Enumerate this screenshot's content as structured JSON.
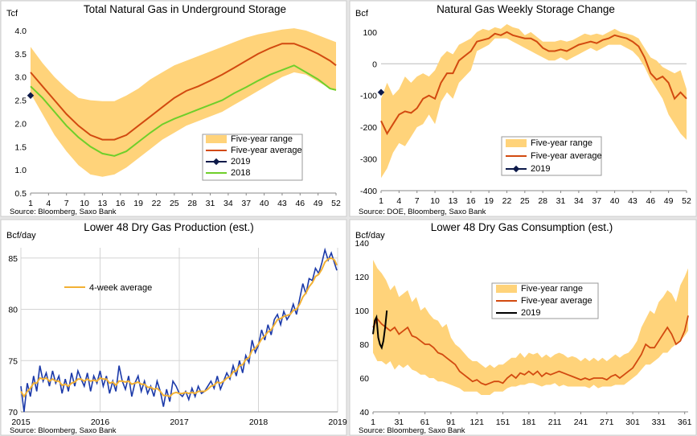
{
  "chart_data": [
    {
      "type": "area",
      "title": "Total Natural Gas in Underground  Storage",
      "ylabel": "Tcf",
      "xlabel": "",
      "source": "Source: Bloomberg, Saxo Bank",
      "xlim": [
        1,
        52
      ],
      "ylim": [
        0.5,
        4.0
      ],
      "x_ticks": [
        "1",
        "4",
        "7",
        "10",
        "13",
        "16",
        "19",
        "22",
        "25",
        "28",
        "31",
        "34",
        "37",
        "40",
        "43",
        "46",
        "49",
        "52"
      ],
      "y_ticks": [
        "0.5",
        "1.0",
        "1.5",
        "2.0",
        "2.5",
        "3.0",
        "3.5",
        "4.0"
      ],
      "legend": [
        "Five-year range",
        "Five-year average",
        "2019",
        "2018"
      ],
      "colors": {
        "range": "#ffd37a",
        "avg": "#d24a10",
        "y2019": "#0d1a4a",
        "y2018": "#6fcf2a"
      },
      "x_weeks": [
        1,
        3,
        5,
        7,
        9,
        11,
        13,
        15,
        17,
        19,
        21,
        23,
        25,
        27,
        29,
        31,
        33,
        35,
        37,
        39,
        41,
        43,
        45,
        47,
        49,
        51,
        52
      ],
      "range_high": [
        3.65,
        3.3,
        3.0,
        2.75,
        2.55,
        2.5,
        2.48,
        2.48,
        2.6,
        2.75,
        2.95,
        3.1,
        3.25,
        3.35,
        3.45,
        3.55,
        3.65,
        3.75,
        3.85,
        3.92,
        3.97,
        4.02,
        4.05,
        4.0,
        3.9,
        3.8,
        3.75
      ],
      "range_low": [
        2.65,
        2.2,
        1.75,
        1.4,
        1.1,
        0.9,
        0.85,
        0.9,
        1.05,
        1.25,
        1.45,
        1.65,
        1.8,
        1.95,
        2.05,
        2.15,
        2.25,
        2.4,
        2.55,
        2.7,
        2.85,
        3.0,
        3.1,
        3.05,
        2.9,
        2.75,
        2.7
      ],
      "average": [
        3.1,
        2.8,
        2.5,
        2.2,
        1.95,
        1.75,
        1.65,
        1.65,
        1.75,
        1.95,
        2.15,
        2.35,
        2.55,
        2.7,
        2.8,
        2.92,
        3.05,
        3.2,
        3.35,
        3.5,
        3.62,
        3.72,
        3.72,
        3.62,
        3.5,
        3.35,
        3.25
      ],
      "series_2018": [
        2.8,
        2.55,
        2.25,
        1.95,
        1.7,
        1.5,
        1.35,
        1.3,
        1.4,
        1.6,
        1.8,
        1.98,
        2.1,
        2.2,
        2.3,
        2.4,
        2.5,
        2.65,
        2.78,
        2.92,
        3.05,
        3.15,
        3.25,
        3.1,
        2.95,
        2.75,
        2.72
      ],
      "series_2019": [
        {
          "x": 1,
          "y": 2.6
        }
      ]
    },
    {
      "type": "area",
      "title": "Natural Gas Weekly Storage Change",
      "ylabel": "Bcf",
      "xlabel": "",
      "source": "Source: DOE, Bloomberg,  Saxo Bank",
      "xlim": [
        1,
        52
      ],
      "ylim": [
        -400,
        125
      ],
      "x_ticks": [
        "1",
        "4",
        "7",
        "10",
        "13",
        "16",
        "19",
        "22",
        "25",
        "28",
        "31",
        "34",
        "37",
        "40",
        "43",
        "46",
        "49",
        "52"
      ],
      "y_ticks": [
        "100",
        "0",
        "-100",
        "-200",
        "-300",
        "-400"
      ],
      "legend": [
        "Five-year range",
        "Five-year average",
        "2019"
      ],
      "colors": {
        "range": "#ffd37a",
        "avg": "#d24a10",
        "y2019": "#0d1a4a"
      },
      "x_weeks": [
        1,
        2,
        3,
        4,
        5,
        6,
        7,
        8,
        9,
        10,
        11,
        12,
        13,
        14,
        15,
        16,
        17,
        18,
        19,
        20,
        21,
        22,
        23,
        24,
        25,
        26,
        27,
        28,
        29,
        30,
        31,
        32,
        33,
        34,
        35,
        36,
        37,
        38,
        39,
        40,
        41,
        42,
        43,
        44,
        45,
        46,
        47,
        48,
        49,
        50,
        51,
        52
      ],
      "range_high": [
        -110,
        -60,
        -100,
        -80,
        -40,
        -60,
        -40,
        -30,
        -40,
        -20,
        20,
        40,
        30,
        60,
        70,
        80,
        100,
        110,
        105,
        115,
        110,
        125,
        115,
        110,
        90,
        100,
        85,
        70,
        70,
        70,
        75,
        70,
        75,
        85,
        95,
        90,
        95,
        90,
        100,
        110,
        100,
        95,
        90,
        80,
        50,
        20,
        10,
        -10,
        -20,
        -30,
        -20,
        -80
      ],
      "range_low": [
        -360,
        -330,
        -280,
        -250,
        -260,
        -230,
        -200,
        -190,
        -160,
        -190,
        -120,
        -90,
        -110,
        -60,
        -40,
        -20,
        40,
        50,
        60,
        80,
        80,
        80,
        70,
        60,
        50,
        40,
        30,
        20,
        10,
        10,
        20,
        10,
        20,
        30,
        40,
        50,
        40,
        50,
        60,
        60,
        60,
        50,
        40,
        20,
        -10,
        -50,
        -80,
        -110,
        -160,
        -190,
        -220,
        -240
      ],
      "average": [
        -180,
        -220,
        -190,
        -160,
        -150,
        -155,
        -140,
        -110,
        -100,
        -110,
        -60,
        -30,
        -30,
        10,
        25,
        40,
        70,
        75,
        80,
        95,
        90,
        100,
        90,
        85,
        80,
        80,
        70,
        50,
        40,
        40,
        45,
        40,
        50,
        60,
        65,
        70,
        65,
        75,
        80,
        90,
        85,
        80,
        70,
        55,
        20,
        -30,
        -50,
        -40,
        -60,
        -110,
        -90,
        -110
      ],
      "series_2019": [
        {
          "x": 1,
          "y": -90
        }
      ]
    },
    {
      "type": "line",
      "title": "Lower 48 Dry Gas Production (est.)",
      "ylabel": "Bcf/day",
      "xlabel": "",
      "source": "Source: Bloomberg, Saxo Bank",
      "xlim": [
        2015,
        2019
      ],
      "ylim": [
        70,
        86
      ],
      "x_ticks": [
        "2015",
        "2016",
        "2017",
        "2018",
        "2019"
      ],
      "y_ticks": [
        "70",
        "75",
        "80",
        "85"
      ],
      "legend": [
        "4-week average"
      ],
      "colors": {
        "daily": "#1c3aa9",
        "avg": "#f2b134"
      },
      "x_years": [
        2015.0,
        2015.04,
        2015.08,
        2015.12,
        2015.16,
        2015.2,
        2015.24,
        2015.28,
        2015.32,
        2015.36,
        2015.4,
        2015.44,
        2015.48,
        2015.52,
        2015.56,
        2015.6,
        2015.64,
        2015.68,
        2015.72,
        2015.76,
        2015.8,
        2015.84,
        2015.88,
        2015.92,
        2015.96,
        2016.0,
        2016.04,
        2016.08,
        2016.12,
        2016.16,
        2016.2,
        2016.24,
        2016.28,
        2016.32,
        2016.36,
        2016.4,
        2016.44,
        2016.48,
        2016.52,
        2016.56,
        2016.6,
        2016.64,
        2016.68,
        2016.72,
        2016.76,
        2016.8,
        2016.84,
        2016.88,
        2016.92,
        2016.96,
        2017.0,
        2017.04,
        2017.08,
        2017.12,
        2017.16,
        2017.2,
        2017.24,
        2017.28,
        2017.32,
        2017.36,
        2017.4,
        2017.44,
        2017.48,
        2017.52,
        2017.56,
        2017.6,
        2017.64,
        2017.68,
        2017.72,
        2017.76,
        2017.8,
        2017.84,
        2017.88,
        2017.92,
        2017.96,
        2018.0,
        2018.04,
        2018.08,
        2018.12,
        2018.16,
        2018.2,
        2018.24,
        2018.28,
        2018.32,
        2018.36,
        2018.4,
        2018.44,
        2018.48,
        2018.52,
        2018.56,
        2018.6,
        2018.64,
        2018.68,
        2018.72,
        2018.76,
        2018.8,
        2018.84,
        2018.88,
        2018.92,
        2018.96,
        2018.99
      ],
      "daily": [
        72.5,
        70.0,
        72.8,
        71.5,
        73.5,
        72.0,
        74.5,
        73.0,
        73.8,
        72.5,
        74.0,
        72.8,
        73.5,
        71.8,
        73.2,
        72.0,
        73.8,
        72.5,
        74.0,
        73.2,
        72.5,
        73.8,
        72.0,
        73.5,
        72.8,
        74.0,
        72.5,
        73.5,
        71.8,
        73.0,
        72.0,
        74.5,
        73.0,
        72.2,
        73.5,
        71.5,
        72.8,
        73.5,
        72.0,
        73.0,
        71.8,
        72.5,
        71.5,
        73.0,
        72.0,
        70.5,
        72.2,
        71.0,
        73.0,
        72.5,
        71.8,
        71.5,
        72.0,
        71.2,
        72.3,
        71.5,
        72.5,
        71.8,
        72.0,
        72.5,
        73.0,
        72.3,
        73.5,
        72.2,
        73.0,
        73.8,
        73.2,
        74.5,
        73.5,
        75.0,
        73.8,
        75.5,
        74.8,
        77.0,
        75.8,
        76.5,
        78.0,
        77.0,
        78.5,
        77.5,
        79.0,
        79.5,
        78.5,
        79.8,
        79.0,
        79.5,
        80.5,
        79.5,
        81.0,
        82.5,
        81.5,
        83.0,
        82.8,
        84.0,
        83.5,
        84.5,
        85.8,
        84.8,
        85.5,
        84.5,
        83.8
      ],
      "average": [
        72.0,
        71.5,
        72.0,
        72.3,
        72.8,
        72.8,
        73.3,
        73.2,
        73.3,
        73.0,
        73.2,
        73.0,
        73.0,
        72.6,
        72.7,
        72.5,
        72.8,
        72.9,
        73.2,
        73.2,
        73.0,
        73.2,
        73.0,
        73.1,
        73.0,
        73.3,
        73.2,
        73.2,
        72.8,
        72.9,
        72.6,
        73.0,
        73.0,
        72.9,
        73.0,
        72.7,
        72.8,
        72.9,
        72.7,
        72.7,
        72.4,
        72.4,
        72.2,
        72.3,
        72.0,
        71.6,
        71.6,
        71.5,
        71.8,
        71.9,
        71.8,
        71.8,
        71.9,
        71.8,
        71.9,
        71.8,
        72.0,
        72.0,
        72.0,
        72.2,
        72.5,
        72.6,
        72.9,
        72.8,
        73.0,
        73.3,
        73.4,
        73.9,
        74.0,
        74.5,
        74.6,
        75.1,
        75.3,
        76.0,
        76.2,
        76.6,
        77.1,
        77.4,
        77.8,
        78.0,
        78.5,
        79.0,
        79.1,
        79.3,
        79.4,
        79.5,
        79.9,
        80.0,
        80.5,
        81.2,
        81.6,
        82.2,
        82.6,
        83.2,
        83.4,
        83.9,
        84.6,
        84.9,
        85.0,
        84.8,
        84.3
      ]
    },
    {
      "type": "area",
      "title": "Lower 48 Dry Gas Consumption (est.)",
      "ylabel": "Bcf/day",
      "xlabel": "",
      "source": "Source: Bloomberg, Saxo Bank",
      "xlim": [
        1,
        365
      ],
      "ylim": [
        40,
        140
      ],
      "x_ticks": [
        "1",
        "31",
        "61",
        "91",
        "121",
        "151",
        "181",
        "211",
        "241",
        "271",
        "301",
        "331",
        "361"
      ],
      "y_ticks": [
        "40",
        "60",
        "80",
        "100",
        "120",
        "140"
      ],
      "legend": [
        "Five-year range",
        "Five-year average",
        "2019"
      ],
      "colors": {
        "range": "#ffd37a",
        "avg": "#d24a10",
        "y2019": "#000000"
      },
      "x_days": [
        1,
        6,
        11,
        16,
        21,
        26,
        31,
        36,
        41,
        46,
        51,
        56,
        61,
        66,
        71,
        76,
        81,
        86,
        91,
        96,
        101,
        106,
        111,
        116,
        121,
        126,
        131,
        136,
        141,
        146,
        151,
        156,
        161,
        166,
        171,
        176,
        181,
        186,
        191,
        196,
        201,
        206,
        211,
        216,
        221,
        226,
        231,
        236,
        241,
        246,
        251,
        256,
        261,
        266,
        271,
        276,
        281,
        286,
        291,
        296,
        301,
        306,
        311,
        316,
        321,
        326,
        331,
        336,
        341,
        346,
        351,
        356,
        361,
        365
      ],
      "range_high": [
        130,
        125,
        122,
        118,
        112,
        115,
        108,
        110,
        112,
        105,
        108,
        100,
        102,
        98,
        95,
        94,
        90,
        92,
        84,
        80,
        78,
        75,
        72,
        70,
        70,
        68,
        66,
        68,
        66,
        68,
        68,
        70,
        72,
        72,
        75,
        72,
        75,
        74,
        75,
        72,
        74,
        72,
        74,
        75,
        74,
        72,
        73,
        72,
        70,
        72,
        70,
        72,
        70,
        72,
        70,
        72,
        74,
        72,
        74,
        75,
        78,
        82,
        90,
        95,
        100,
        98,
        105,
        108,
        112,
        110,
        105,
        115,
        120,
        125
      ],
      "range_low": [
        75,
        70,
        70,
        68,
        70,
        65,
        68,
        66,
        68,
        65,
        64,
        62,
        62,
        60,
        60,
        58,
        58,
        57,
        56,
        55,
        54,
        52,
        52,
        52,
        52,
        50,
        50,
        50,
        52,
        52,
        52,
        54,
        55,
        55,
        56,
        56,
        57,
        57,
        56,
        55,
        56,
        56,
        57,
        55,
        56,
        55,
        55,
        55,
        55,
        55,
        54,
        56,
        54,
        55,
        55,
        55,
        56,
        56,
        56,
        58,
        60,
        62,
        65,
        68,
        68,
        70,
        72,
        75,
        75,
        78,
        80,
        82,
        85,
        88
      ],
      "average": [
        90,
        95,
        92,
        90,
        88,
        90,
        86,
        88,
        90,
        85,
        84,
        82,
        80,
        80,
        78,
        75,
        74,
        72,
        70,
        68,
        64,
        62,
        60,
        58,
        59,
        57,
        56,
        57,
        58,
        58,
        57,
        60,
        62,
        60,
        63,
        62,
        64,
        62,
        64,
        61,
        63,
        62,
        63,
        64,
        63,
        62,
        61,
        60,
        59,
        60,
        59,
        60,
        60,
        60,
        59,
        61,
        62,
        60,
        62,
        64,
        66,
        70,
        74,
        80,
        78,
        78,
        82,
        86,
        90,
        86,
        80,
        82,
        88,
        97
      ],
      "series_2019": [
        [
          1,
          86
        ],
        [
          3,
          94
        ],
        [
          5,
          96
        ],
        [
          7,
          84
        ],
        [
          9,
          80
        ],
        [
          11,
          78
        ],
        [
          13,
          82
        ],
        [
          15,
          90
        ],
        [
          17,
          100
        ]
      ]
    }
  ]
}
